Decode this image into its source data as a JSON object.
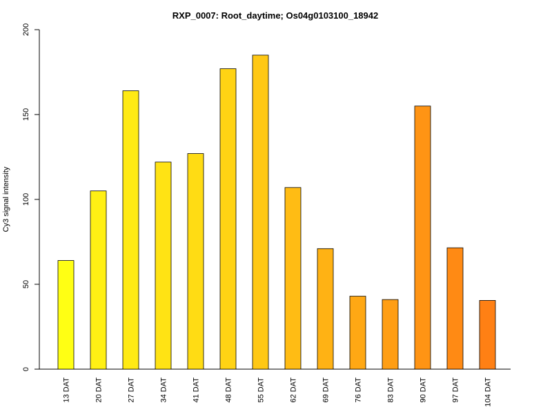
{
  "chart_data": {
    "type": "bar",
    "title": "RXP_0007: Root_daytime; Os04g0103100_18942",
    "xlabel": "",
    "ylabel": "Cy3 signal intensity",
    "ylim": [
      0,
      200
    ],
    "yticks": [
      "0",
      "50",
      "100",
      "150",
      "200"
    ],
    "categories": [
      "13 DAT",
      "20 DAT",
      "27 DAT",
      "34 DAT",
      "41 DAT",
      "48 DAT",
      "55 DAT",
      "62 DAT",
      "69 DAT",
      "76 DAT",
      "83 DAT",
      "90 DAT",
      "97 DAT",
      "104 DAT"
    ],
    "values": [
      64,
      105,
      164,
      122,
      127,
      177,
      185,
      107,
      71,
      43,
      41,
      155,
      71.5,
      40.5
    ],
    "colors": [
      "#FFFF14",
      "#FFF014",
      "#FFEA14",
      "#FFE314",
      "#FFDC14",
      "#FFD314",
      "#FFC814",
      "#FFBC14",
      "#FFB214",
      "#FFA814",
      "#FF9E14",
      "#FF9414",
      "#FF8A14",
      "#FF8014"
    ],
    "grid": false,
    "legend": "none"
  }
}
